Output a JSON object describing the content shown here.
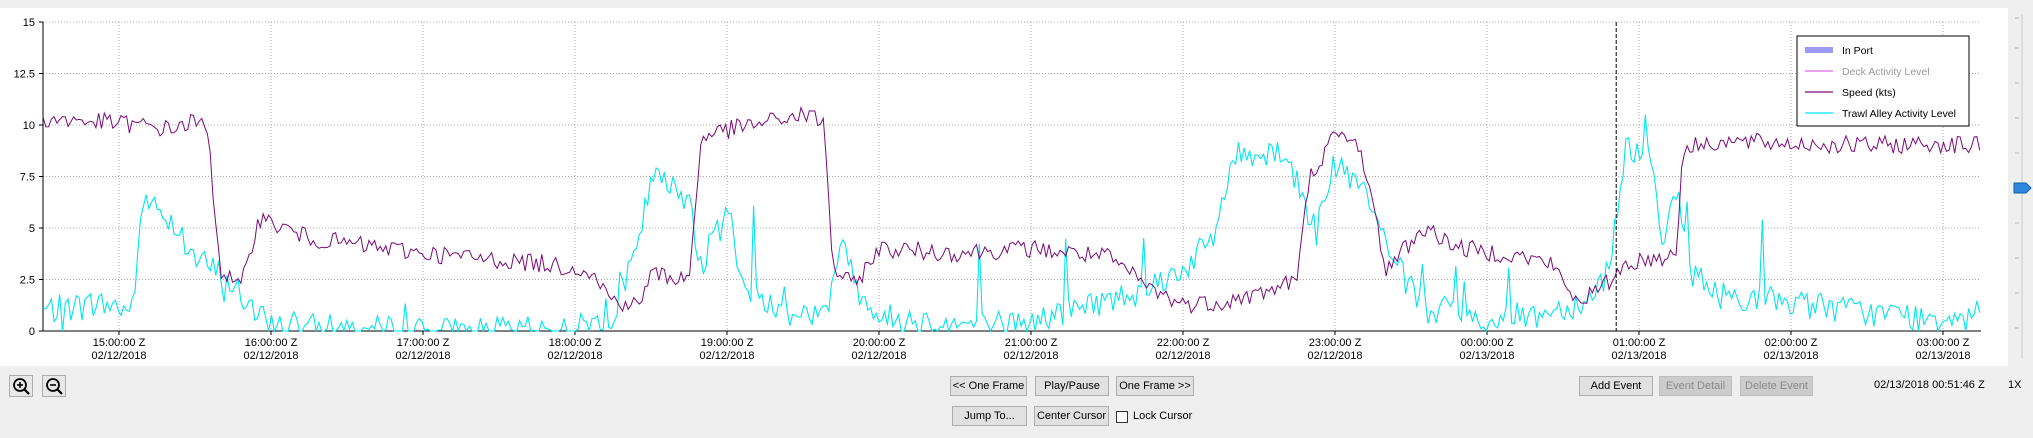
{
  "chart_data": {
    "type": "line",
    "ylim": [
      0,
      15
    ],
    "yticks": [
      "0",
      "2.5",
      "5",
      "7.5",
      "10",
      "12.5",
      "15"
    ],
    "xlim": [
      "02/12/2018 14:30",
      "02/13/2018 03:15"
    ],
    "xticks": [
      {
        "time": "15:00:00 Z",
        "date": "02/12/2018"
      },
      {
        "time": "16:00:00 Z",
        "date": "02/12/2018"
      },
      {
        "time": "17:00:00 Z",
        "date": "02/12/2018"
      },
      {
        "time": "18:00:00 Z",
        "date": "02/12/2018"
      },
      {
        "time": "19:00:00 Z",
        "date": "02/12/2018"
      },
      {
        "time": "20:00:00 Z",
        "date": "02/12/2018"
      },
      {
        "time": "21:00:00 Z",
        "date": "02/12/2018"
      },
      {
        "time": "22:00:00 Z",
        "date": "02/12/2018"
      },
      {
        "time": "23:00:00 Z",
        "date": "02/12/2018"
      },
      {
        "time": "00:00:00 Z",
        "date": "02/13/2018"
      },
      {
        "time": "01:00:00 Z",
        "date": "02/13/2018"
      },
      {
        "time": "02:00:00 Z",
        "date": "02/13/2018"
      },
      {
        "time": "03:00:00 Z",
        "date": "02/13/2018"
      }
    ],
    "grid": true,
    "legend_position": "top-right",
    "cursor_time": "02/13/2018 00:51:46",
    "series": [
      {
        "name": "In Port",
        "color": "#9b9bf5",
        "values": []
      },
      {
        "name": "Deck Activity Level",
        "color": "#e066e0",
        "values": [],
        "label_dimmed": true
      },
      {
        "name": "Speed (kts)",
        "color": "#7a0a7a",
        "points": [
          [
            "02/12/2018 14:30",
            10.3
          ],
          [
            "02/12/2018 15:00",
            10.1
          ],
          [
            "02/12/2018 15:20",
            9.8
          ],
          [
            "02/12/2018 15:30",
            10.2
          ],
          [
            "02/12/2018 15:35",
            9.7
          ],
          [
            "02/12/2018 15:40",
            3.0
          ],
          [
            "02/12/2018 15:48",
            2.0
          ],
          [
            "02/12/2018 15:55",
            5.5
          ],
          [
            "02/12/2018 16:15",
            4.5
          ],
          [
            "02/12/2018 16:45",
            4.0
          ],
          [
            "02/12/2018 17:15",
            3.6
          ],
          [
            "02/12/2018 17:45",
            3.3
          ],
          [
            "02/12/2018 18:05",
            3.0
          ],
          [
            "02/12/2018 18:15",
            1.5
          ],
          [
            "02/12/2018 18:25",
            1.2
          ],
          [
            "02/12/2018 18:30",
            2.8
          ],
          [
            "02/12/2018 18:45",
            2.5
          ],
          [
            "02/12/2018 18:50",
            9.5
          ],
          [
            "02/12/2018 19:10",
            10.0
          ],
          [
            "02/12/2018 19:30",
            10.5
          ],
          [
            "02/12/2018 19:38",
            10.2
          ],
          [
            "02/12/2018 19:42",
            3.0
          ],
          [
            "02/12/2018 19:50",
            2.2
          ],
          [
            "02/12/2018 20:00",
            4.0
          ],
          [
            "02/12/2018 20:30",
            3.8
          ],
          [
            "02/12/2018 21:00",
            4.0
          ],
          [
            "02/12/2018 21:30",
            3.6
          ],
          [
            "02/12/2018 21:48",
            2.0
          ],
          [
            "02/12/2018 22:00",
            1.3
          ],
          [
            "02/12/2018 22:15",
            1.4
          ],
          [
            "02/12/2018 22:30",
            1.8
          ],
          [
            "02/12/2018 22:45",
            2.5
          ],
          [
            "02/12/2018 22:50",
            7.5
          ],
          [
            "02/12/2018 23:00",
            9.5
          ],
          [
            "02/12/2018 23:10",
            9.0
          ],
          [
            "02/12/2018 23:15",
            6.0
          ],
          [
            "02/12/2018 23:20",
            3.0
          ],
          [
            "02/12/2018 23:35",
            5.0
          ],
          [
            "02/12/2018 23:50",
            4.0
          ],
          [
            "02/13/2018 00:10",
            3.7
          ],
          [
            "02/13/2018 00:25",
            3.3
          ],
          [
            "02/13/2018 00:35",
            1.5
          ],
          [
            "02/13/2018 00:45",
            2.0
          ],
          [
            "02/13/2018 00:55",
            3.3
          ],
          [
            "02/13/2018 01:10",
            3.6
          ],
          [
            "02/13/2018 01:15",
            3.8
          ],
          [
            "02/13/2018 01:17",
            8.8
          ],
          [
            "02/13/2018 01:30",
            9.2
          ],
          [
            "02/13/2018 02:00",
            9.1
          ],
          [
            "02/13/2018 02:30",
            9.0
          ],
          [
            "02/13/2018 03:00",
            9.1
          ],
          [
            "02/13/2018 03:12",
            9.0
          ]
        ]
      },
      {
        "name": "Trawl Alley Activity Level",
        "color": "#00e5ee",
        "points": [
          [
            "02/12/2018 14:30",
            1.0
          ],
          [
            "02/12/2018 14:55",
            1.3
          ],
          [
            "02/12/2018 15:05",
            1.0
          ],
          [
            "02/12/2018 15:10",
            6.5
          ],
          [
            "02/12/2018 15:20",
            5.5
          ],
          [
            "02/12/2018 15:30",
            3.5
          ],
          [
            "02/12/2018 15:40",
            2.8
          ],
          [
            "02/12/2018 15:48",
            1.8
          ],
          [
            "02/12/2018 15:55",
            0.6
          ],
          [
            "02/12/2018 16:05",
            0.2
          ],
          [
            "02/12/2018 16:30",
            0.1
          ],
          [
            "02/12/2018 17:00",
            0.0
          ],
          [
            "02/12/2018 17:40",
            0.0
          ],
          [
            "02/12/2018 18:00",
            0.1
          ],
          [
            "02/12/2018 18:15",
            0.8
          ],
          [
            "02/12/2018 18:25",
            4.0
          ],
          [
            "02/12/2018 18:30",
            7.5
          ],
          [
            "02/12/2018 18:45",
            6.5
          ],
          [
            "02/12/2018 18:50",
            3.0
          ],
          [
            "02/12/2018 19:00",
            6.5
          ],
          [
            "02/12/2018 19:05",
            2.5
          ],
          [
            "02/12/2018 19:20",
            1.0
          ],
          [
            "02/12/2018 19:40",
            0.8
          ],
          [
            "02/12/2018 19:45",
            4.5
          ],
          [
            "02/12/2018 19:52",
            2.0
          ],
          [
            "02/12/2018 20:00",
            0.7
          ],
          [
            "02/12/2018 20:30",
            0.3
          ],
          [
            "02/12/2018 21:00",
            0.4
          ],
          [
            "02/12/2018 21:20",
            1.2
          ],
          [
            "02/12/2018 21:40",
            1.8
          ],
          [
            "02/12/2018 22:00",
            3.0
          ],
          [
            "02/12/2018 22:12",
            4.5
          ],
          [
            "02/12/2018 22:20",
            8.5
          ],
          [
            "02/12/2018 22:40",
            8.8
          ],
          [
            "02/12/2018 22:50",
            5.5
          ],
          [
            "02/12/2018 23:00",
            8.0
          ],
          [
            "02/12/2018 23:10",
            7.0
          ],
          [
            "02/12/2018 23:25",
            3.0
          ],
          [
            "02/12/2018 23:35",
            1.0
          ],
          [
            "02/13/2018 00:00",
            0.5
          ],
          [
            "02/13/2018 00:20",
            0.8
          ],
          [
            "02/13/2018 00:40",
            1.5
          ],
          [
            "02/13/2018 00:48",
            3.0
          ],
          [
            "02/13/2018 00:55",
            9.0
          ],
          [
            "02/13/2018 01:05",
            8.5
          ],
          [
            "02/13/2018 01:10",
            4.0
          ],
          [
            "02/13/2018 01:15",
            7.0
          ],
          [
            "02/13/2018 01:20",
            3.0
          ],
          [
            "02/13/2018 01:30",
            1.8
          ],
          [
            "02/13/2018 02:00",
            1.4
          ],
          [
            "02/13/2018 02:30",
            0.9
          ],
          [
            "02/13/2018 03:00",
            0.6
          ],
          [
            "02/13/2018 03:12",
            1.2
          ]
        ]
      }
    ]
  },
  "controls": {
    "prev_frame": "<< One Frame",
    "play_pause": "Play/Pause",
    "next_frame": "One Frame >>",
    "jump_to": "Jump To...",
    "center_cursor": "Center Cursor",
    "lock_cursor": "Lock Cursor",
    "add_event": "Add Event",
    "event_detail": "Event Detail",
    "delete_event": "Delete Event",
    "timestamp": "02/13/2018 00:51:46 Z",
    "playback_speed": "1X"
  },
  "icons": {
    "zoom_in": "zoom-in-icon",
    "zoom_out": "zoom-out-icon",
    "slider": "slider-handle-icon"
  }
}
